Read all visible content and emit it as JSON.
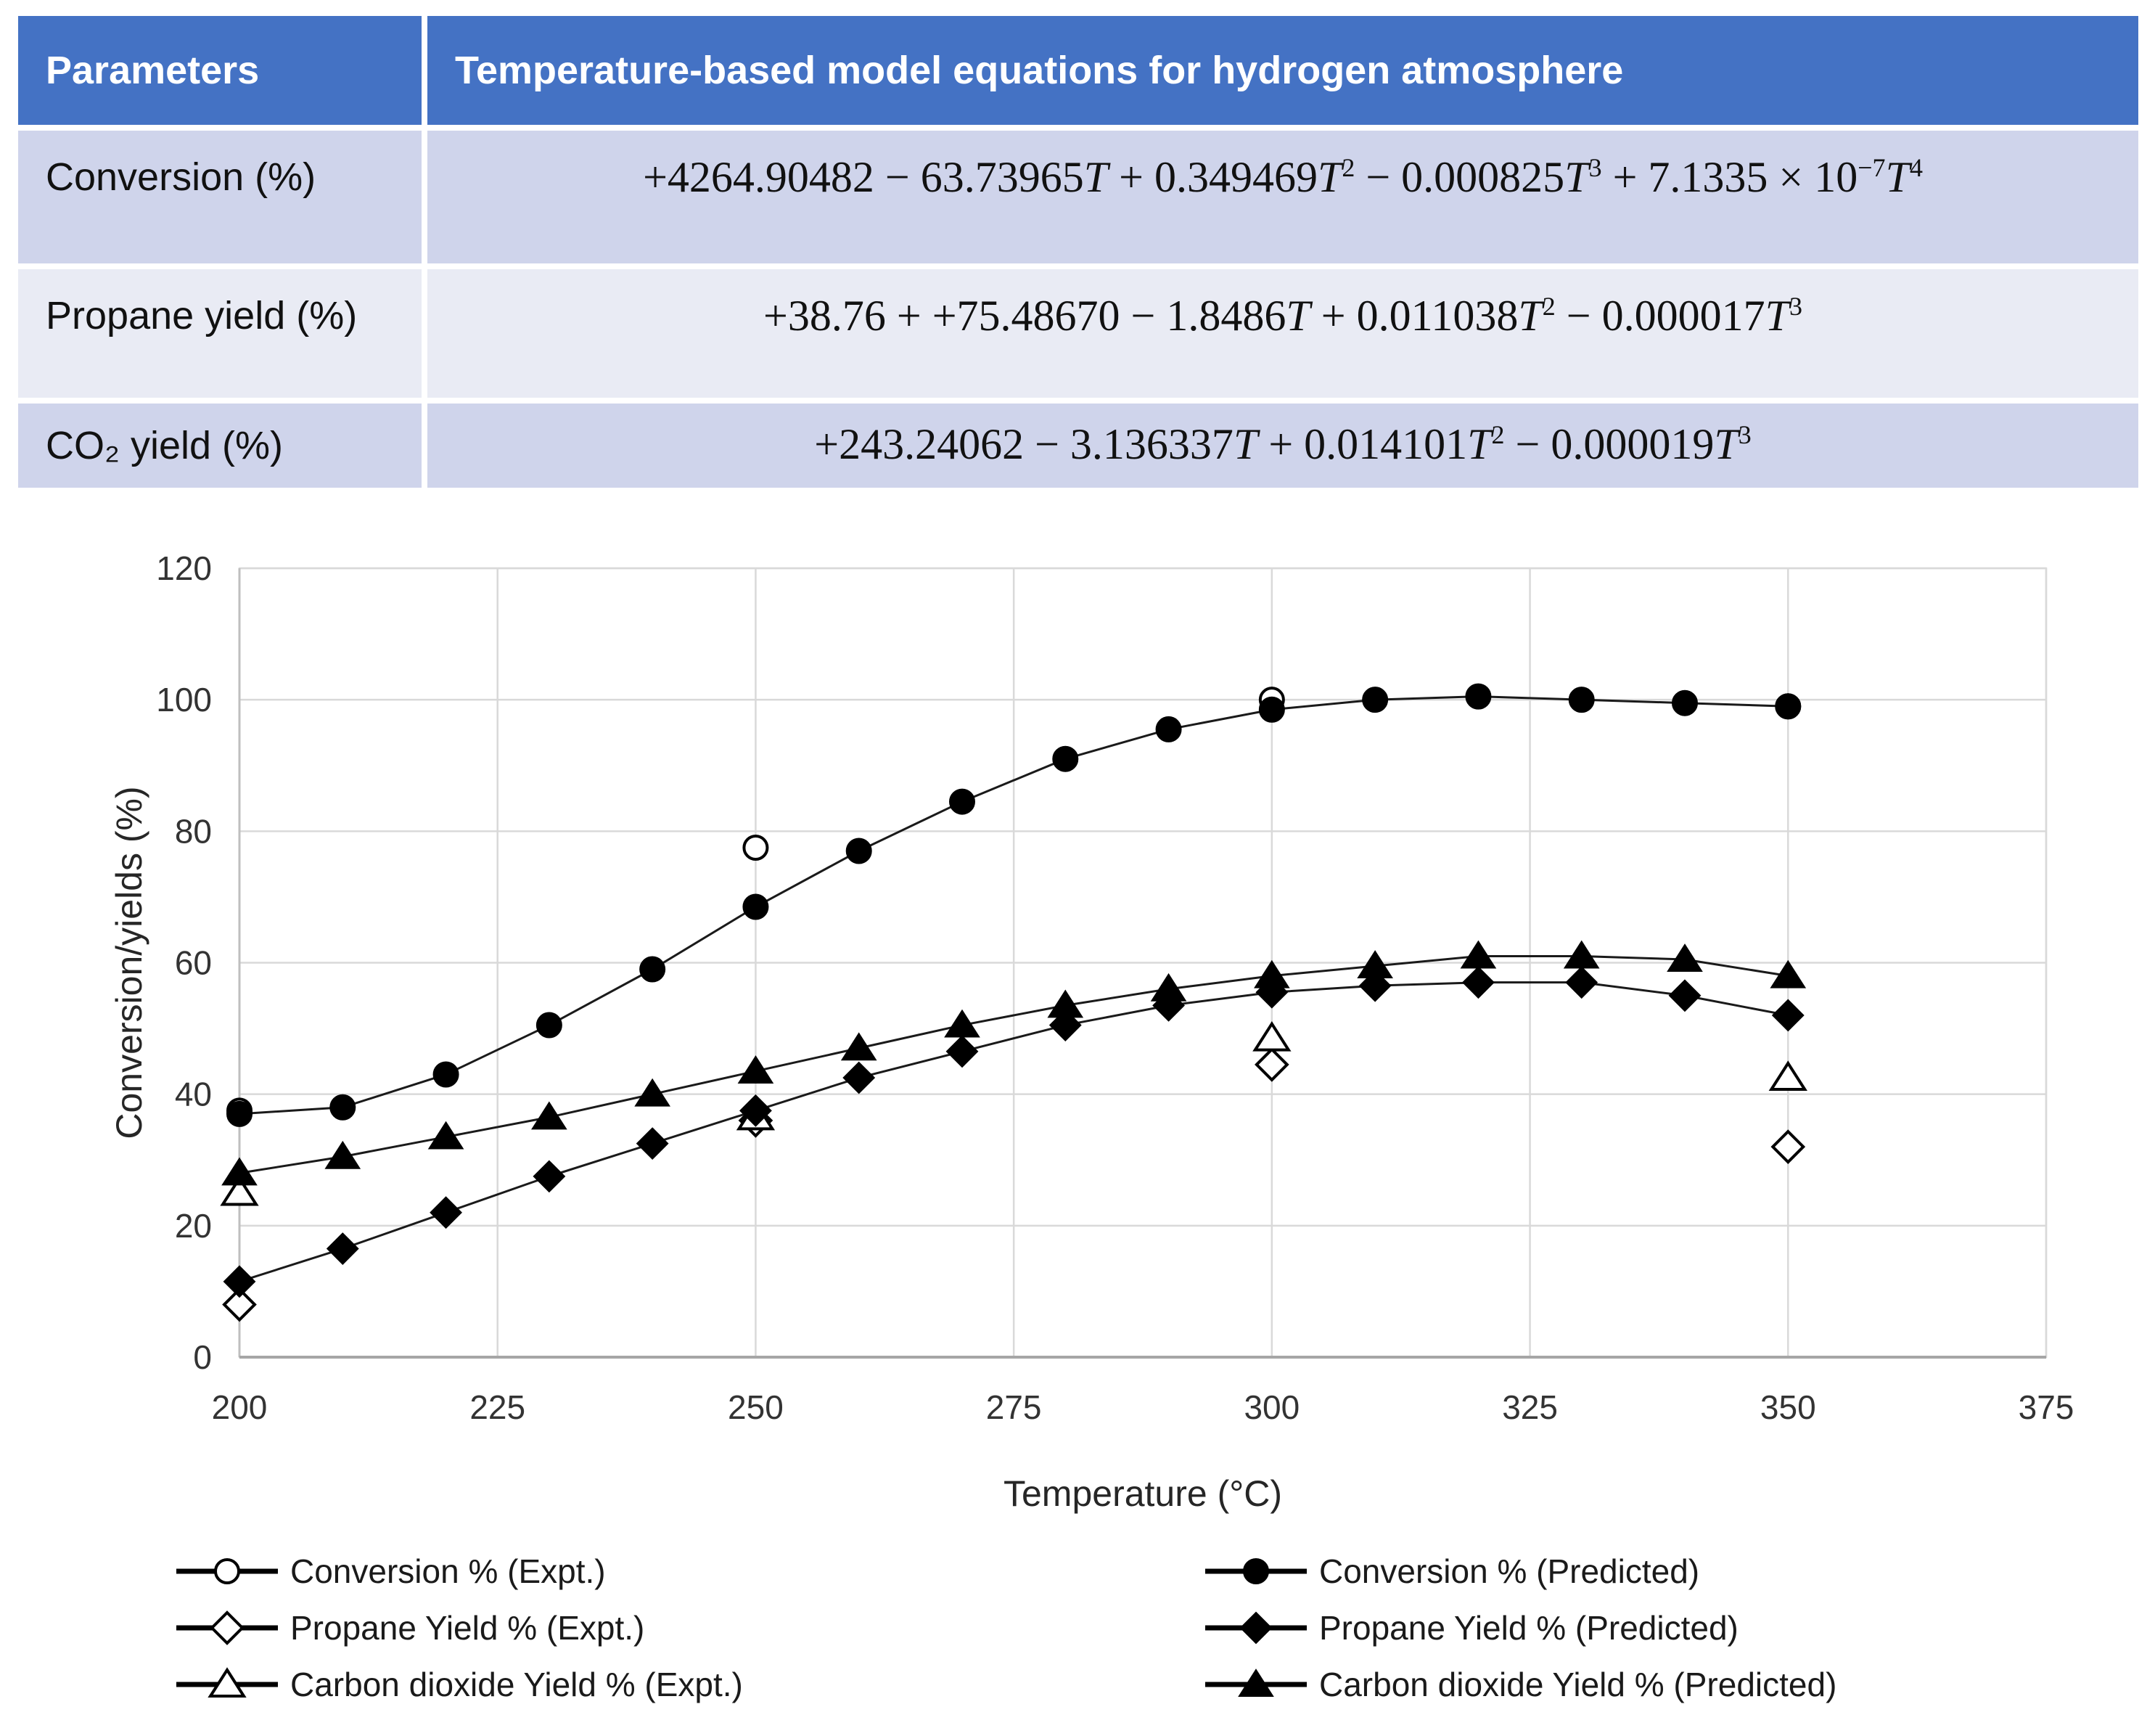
{
  "table": {
    "header": {
      "col1": "Parameters",
      "col2": "Temperature-based model equations for hydrogen atmosphere"
    },
    "rows": [
      {
        "param": "Conversion (%)",
        "equation": "+4264.90482 − 63.73965T + 0.349469T^2 − 0.000825T^3 + 7.1335 × 10^−7T^4"
      },
      {
        "param": "Propane yield (%)",
        "equation": "+38.76 + +75.48670 − 1.8486T + 0.011038T^2 − 0.000017T^3"
      },
      {
        "param": "CO₂ yield (%)",
        "equation": "+243.24062 − 3.136337T + 0.014101T^2 − 0.000019T^3"
      }
    ],
    "colors": {
      "header_bg": "#4472C4",
      "row_bg_odd": "#CFD4EB",
      "row_bg_even": "#E9EBF4"
    }
  },
  "chart_data": {
    "type": "line",
    "title": "",
    "xlabel": "Temperature (°C)",
    "ylabel": "Conversion/yields (%)",
    "xlim": [
      200,
      375
    ],
    "ylim": [
      0,
      120
    ],
    "xticks": [
      200,
      225,
      250,
      275,
      300,
      325,
      350,
      375
    ],
    "yticks": [
      0,
      20,
      40,
      60,
      80,
      100,
      120
    ],
    "grid": true,
    "legend_position": "bottom",
    "colors": {
      "series": "#1a1a1a",
      "grid": "#D9D9D9",
      "axis": "#A6A6A6",
      "tick_text": "#333333"
    },
    "series": [
      {
        "name": "Conversion % (Expt.)",
        "marker": "circle",
        "fill": "open",
        "line": false,
        "x": [
          200,
          250,
          300,
          350
        ],
        "values": [
          37.5,
          77.5,
          100,
          99
        ]
      },
      {
        "name": "Propane Yield % (Expt.)",
        "marker": "diamond",
        "fill": "open",
        "line": false,
        "x": [
          200,
          250,
          300,
          350
        ],
        "values": [
          8,
          36,
          44.5,
          32
        ]
      },
      {
        "name": "Carbon dioxide Yield % (Expt.)",
        "marker": "triangle",
        "fill": "open",
        "line": false,
        "x": [
          200,
          250,
          300,
          350
        ],
        "values": [
          25,
          36.5,
          48.5,
          42.5
        ]
      },
      {
        "name": "Conversion % (Predicted)",
        "marker": "circle",
        "fill": "solid",
        "line": true,
        "x": [
          200,
          210,
          220,
          230,
          240,
          250,
          260,
          270,
          280,
          290,
          300,
          310,
          320,
          330,
          340,
          350
        ],
        "values": [
          37,
          38,
          43,
          50.5,
          59,
          68.5,
          77,
          84.5,
          91,
          95.5,
          98.5,
          100,
          100.5,
          100,
          99.5,
          99
        ]
      },
      {
        "name": "Propane Yield % (Predicted)",
        "marker": "diamond",
        "fill": "solid",
        "line": true,
        "x": [
          200,
          210,
          220,
          230,
          240,
          250,
          260,
          270,
          280,
          290,
          300,
          310,
          320,
          330,
          340,
          350
        ],
        "values": [
          11.5,
          16.5,
          22,
          27.5,
          32.5,
          37.5,
          42.5,
          46.5,
          50.5,
          53.5,
          55.5,
          56.5,
          57,
          57,
          55,
          52
        ]
      },
      {
        "name": "Carbon dioxide Yield % (Predicted)",
        "marker": "triangle",
        "fill": "solid",
        "line": true,
        "x": [
          200,
          210,
          220,
          230,
          240,
          250,
          260,
          270,
          280,
          290,
          300,
          310,
          320,
          330,
          340,
          350
        ],
        "values": [
          28,
          30.5,
          33.5,
          36.5,
          40,
          43.5,
          47,
          50.5,
          53.5,
          56,
          58,
          59.5,
          61,
          61,
          60.5,
          58
        ]
      }
    ]
  }
}
